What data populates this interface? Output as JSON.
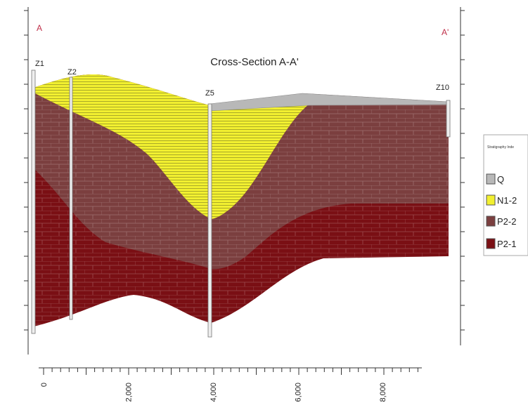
{
  "title": "Cross-Section A-A'",
  "section_ends": {
    "left": "A",
    "right": "A'"
  },
  "boreholes": [
    "Z1",
    "Z2",
    "Z5",
    "Z10"
  ],
  "legend": {
    "title": "Stratigraphy Inde",
    "items": [
      "Q",
      "N1-2",
      "P2-2",
      "P2-1"
    ]
  },
  "x_axis": {
    "ticks": [
      "0",
      "2,000",
      "4,000",
      "6,000",
      "8,000"
    ]
  }
}
